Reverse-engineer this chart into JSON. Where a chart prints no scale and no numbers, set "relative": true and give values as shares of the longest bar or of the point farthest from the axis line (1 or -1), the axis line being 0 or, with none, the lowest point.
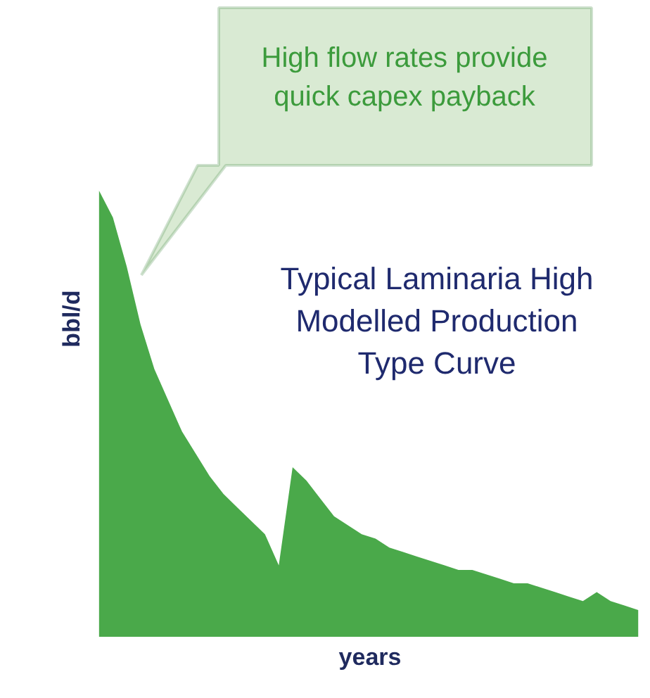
{
  "chart_data": {
    "type": "area",
    "relative": true,
    "xlabel": "years",
    "ylabel": "bbl/d",
    "color": "#4aa94a",
    "categories": [
      null,
      null,
      null,
      null,
      null,
      null,
      null,
      null,
      null,
      null,
      null,
      null,
      null,
      null,
      null,
      null,
      null,
      null,
      null,
      null,
      null,
      null,
      null,
      null,
      null,
      null,
      null,
      null,
      null,
      null,
      null,
      null,
      null,
      null,
      null,
      null,
      null,
      null,
      null,
      null
    ],
    "values": [
      1.0,
      0.94,
      0.83,
      0.7,
      0.6,
      0.53,
      0.46,
      0.41,
      0.36,
      0.32,
      0.29,
      0.26,
      0.23,
      0.16,
      0.38,
      0.35,
      0.31,
      0.27,
      0.25,
      0.23,
      0.22,
      0.2,
      0.19,
      0.18,
      0.17,
      0.16,
      0.15,
      0.15,
      0.14,
      0.13,
      0.12,
      0.12,
      0.11,
      0.1,
      0.09,
      0.08,
      0.1,
      0.08,
      0.07,
      0.06
    ],
    "annotations": [
      "High flow rates provide quick capex payback",
      "Typical Laminaria High Modelled Production Type Curve"
    ]
  }
}
